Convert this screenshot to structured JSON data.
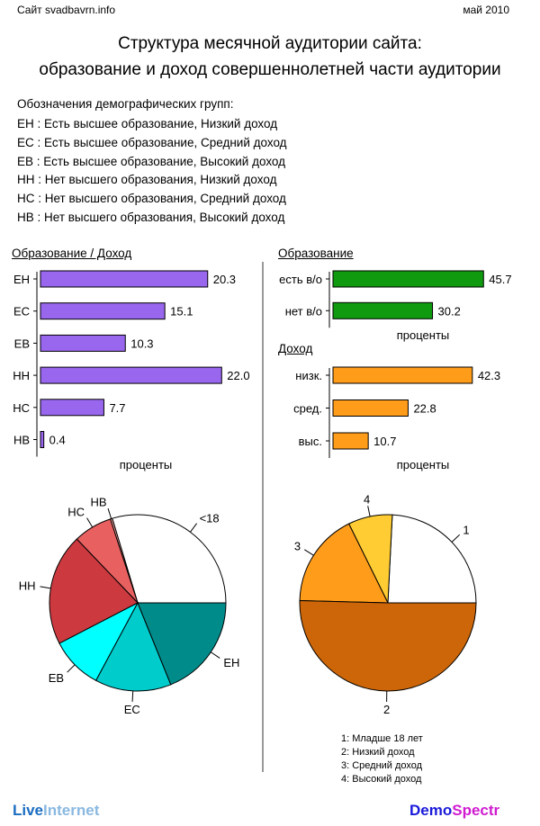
{
  "header": {
    "site": "Сайт svadbavrn.info",
    "date": "май 2010"
  },
  "title": {
    "line1": "Структура месячной аудитории сайта:",
    "line2": "образование и доход совершеннолетней части аудитории"
  },
  "legend": {
    "title": "Обозначения демографических групп:",
    "lines": [
      "ЕН : Есть высшее образование, Низкий доход",
      "ЕС : Есть высшее образование, Средний доход",
      "ЕВ : Есть высшее образование, Высокий доход",
      "НН : Нет высшего образования, Низкий доход",
      "НС : Нет высшего образования, Средний доход",
      "НВ : Нет высшего образования, Высокий доход"
    ]
  },
  "colors": {
    "purple": "#9966ee",
    "green": "#0f9a0f",
    "orange": "#ff9c1a"
  },
  "chart_data": [
    {
      "type": "bar",
      "title": "Образование / Доход",
      "xlabel": "проценты",
      "categories": [
        "ЕН",
        "ЕС",
        "ЕВ",
        "НН",
        "НС",
        "НВ"
      ],
      "values": [
        20.3,
        15.1,
        10.3,
        22.0,
        7.7,
        0.4
      ],
      "value_labels": [
        "20.3",
        "15.1",
        "10.3",
        "22.0",
        "7.7",
        "0.4"
      ],
      "color": "#9966ee"
    },
    {
      "type": "bar",
      "title": "Образование",
      "xlabel": "проценты",
      "categories": [
        "есть в/о",
        "нет в/о"
      ],
      "values": [
        45.7,
        30.2
      ],
      "value_labels": [
        "45.7",
        "30.2"
      ],
      "color": "#0f9a0f"
    },
    {
      "type": "bar",
      "title": "Доход",
      "xlabel": "проценты",
      "categories": [
        "низк.",
        "сред.",
        "выс."
      ],
      "values": [
        42.3,
        22.8,
        10.7
      ],
      "value_labels": [
        "42.3",
        "22.8",
        "10.7"
      ],
      "color": "#ff9c1a"
    },
    {
      "type": "pie",
      "labels": [
        "<18",
        "НВ",
        "НС",
        "НН",
        "ЕВ",
        "ЕС",
        "ЕН"
      ],
      "values": [
        24.2,
        0.3,
        5.8,
        16.7,
        7.8,
        11.4,
        15.4
      ],
      "colors": [
        "#ffffff",
        "#f5a0a0",
        "#e86060",
        "#cc3a40",
        "#00ffff",
        "#00cccc",
        "#008b8b"
      ]
    },
    {
      "type": "pie",
      "labels": [
        "1",
        "4",
        "3",
        "2"
      ],
      "values": [
        24.2,
        8.1,
        17.3,
        50.4
      ],
      "colors": [
        "#ffffff",
        "#ffcc33",
        "#ff9c1a",
        "#cc6608"
      ],
      "legend": [
        "1: Младше 18 лет",
        "2: Низкий доход",
        "3: Средний доход",
        "4: Высокий доход"
      ]
    }
  ],
  "footer": {
    "left_part1": "Live",
    "left_part2": "Internet",
    "right_part1": "Demo",
    "right_part2": "Spectr"
  }
}
